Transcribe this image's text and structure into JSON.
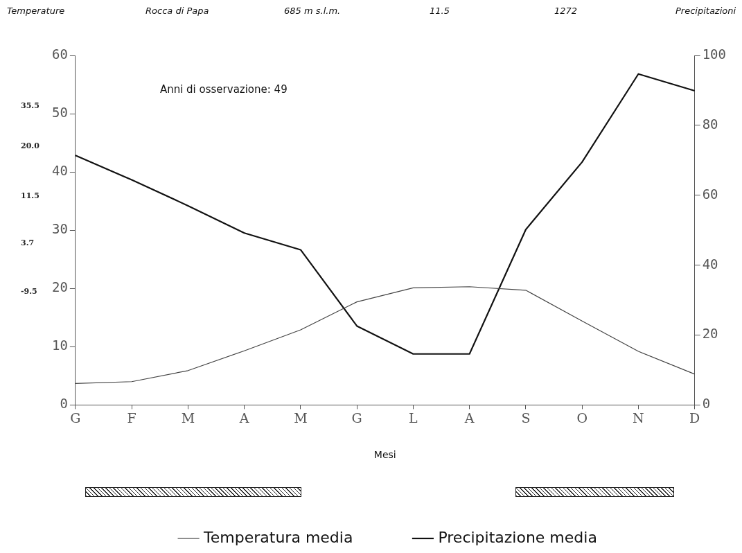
{
  "chart_data": {
    "type": "line",
    "title": "Rocca di Papa",
    "ylabel": "Temperature",
    "y2label": "Precipitazioni",
    "xlabel": "Mesi",
    "annotations": [
      "685 m s.l.m.",
      "11.5",
      "1272",
      "Anni di osservazione: 49",
      "35.5",
      "20.0",
      "11.5",
      "3.7",
      "-9.5"
    ],
    "categories": [
      "G",
      "F",
      "M",
      "A",
      "M",
      "G",
      "L",
      "A",
      "S",
      "O",
      "N",
      "D"
    ],
    "series": [
      {
        "name": "Temperatura media",
        "color": "#444444",
        "values": [
          3.7,
          4.0,
          5.9,
          9.3,
          12.9,
          17.7,
          20.1,
          20.3,
          19.7,
          14.4,
          9.2,
          5.3
        ]
      },
      {
        "name": "Precipitazione media",
        "color": "#111111",
        "axis": "y2",
        "values": [
          71.4,
          64.4,
          57.0,
          49.2,
          44.4,
          22.6,
          14.6,
          14.6,
          50.2,
          69.5,
          94.7,
          89.9
        ]
      }
    ],
    "ylim": [
      0,
      60
    ],
    "yticks": [
      0,
      10,
      20,
      30,
      40,
      50,
      60
    ],
    "y2lim": [
      0,
      100
    ],
    "y2ticks": [
      0,
      20,
      40,
      60,
      80,
      100
    ],
    "grid": false,
    "legend": "bottom",
    "marker": "none",
    "line_style": "solid"
  }
}
